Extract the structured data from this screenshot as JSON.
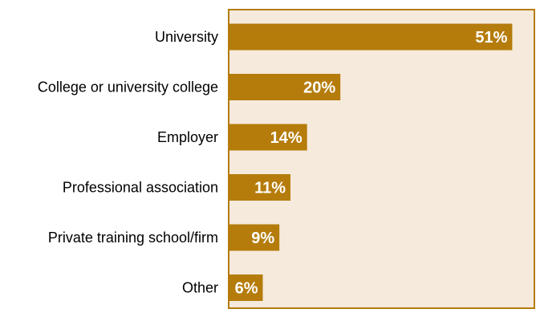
{
  "chart_data": {
    "type": "bar",
    "orientation": "horizontal",
    "categories": [
      "University",
      "College or university college",
      "Employer",
      "Professional association",
      "Private training school/firm",
      "Other"
    ],
    "values": [
      51,
      20,
      14,
      11,
      9,
      6
    ],
    "value_labels": [
      "51%",
      "20%",
      "14%",
      "11%",
      "9%",
      "6%"
    ],
    "xlim": [
      0,
      55
    ],
    "grid": false,
    "legend": "none",
    "title": "",
    "xlabel": "",
    "ylabel": "",
    "colors": {
      "bar": "#b57c0b",
      "plot_background": "#f5eadc",
      "plot_border": "#b57c0b",
      "value_text": "#ffffff",
      "category_text": "#000000"
    }
  }
}
